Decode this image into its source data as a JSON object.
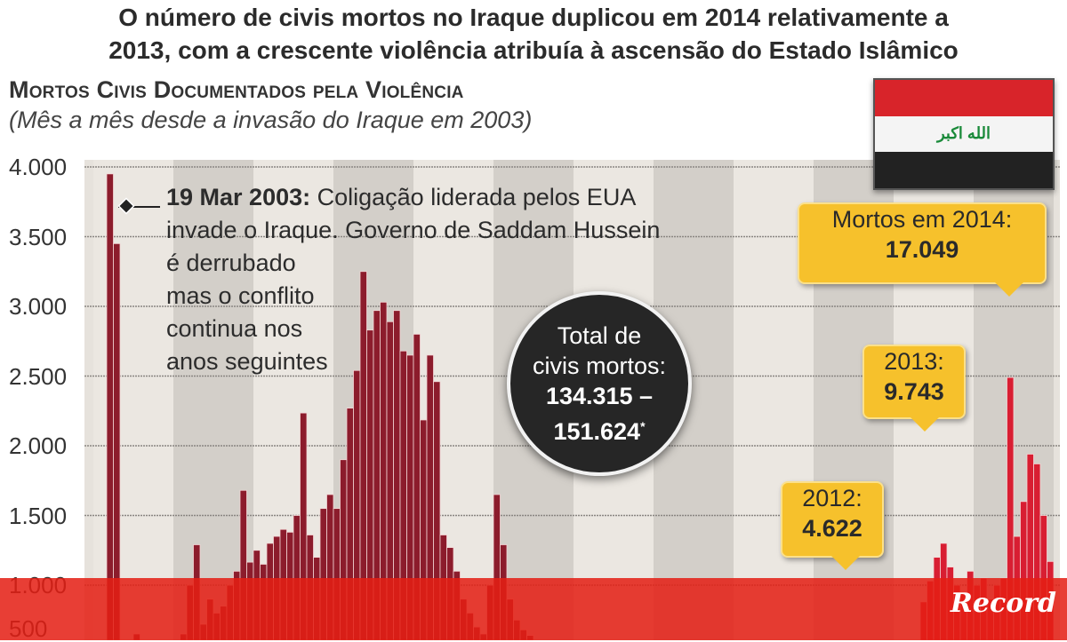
{
  "header": {
    "title_line1": "O número de civis mortos no Iraque duplicou em 2014 relativamente a",
    "title_line2": "2013, com a crescente violência atribuía à ascensão do Estado Islâmico",
    "subtitle": "Mortos Civis Documentados pela Violência",
    "note": "(Mês a mês desde a invasão do Iraque em 2003)"
  },
  "annotation": {
    "date": "19 Mar 2003:",
    "line1": " Coligação liderada pelos EUA",
    "line2": "invade o Iraque. Governo de Saddam Hussein",
    "line3": "é derrubado",
    "line4": "mas o conflito",
    "line5": "continua nos",
    "line6": "anos seguintes"
  },
  "total": {
    "line1": "Total de",
    "line2": "civis mortos:",
    "line3": "134.315 –",
    "line4": "151.624",
    "mark": "*"
  },
  "callouts": {
    "y2014": {
      "label": "Mortos em 2014:",
      "value": "17.049"
    },
    "y2013": {
      "label": "2013:",
      "value": "9.743"
    },
    "y2012": {
      "label": "2012:",
      "value": "4.622"
    }
  },
  "flag": {
    "text": "الله اكبر",
    "colors": [
      "#d8242a",
      "#f4f4f4",
      "#222222"
    ]
  },
  "brand": {
    "logo": "Record",
    "banner_color": "#e41e14"
  },
  "chart_data": {
    "type": "bar",
    "x_start": "2003-03",
    "x_interval": "month",
    "ylim": [
      0,
      4000
    ],
    "yticks": [
      "4.000",
      "3.500",
      "3.000",
      "2.500",
      "2.000",
      "1.500",
      "1.000",
      "500"
    ],
    "ytick_values": [
      4000,
      3500,
      3000,
      2500,
      2000,
      1500,
      1000,
      500
    ],
    "grid": true,
    "colors": {
      "default": "#8c1c2c",
      "recent": "#d81e32"
    },
    "highlight_from_index": 118,
    "values": [
      3950,
      3450,
      550,
      590,
      650,
      500,
      500,
      520,
      550,
      480,
      600,
      650,
      1000,
      1290,
      720,
      900,
      800,
      850,
      1000,
      1100,
      1680,
      1165,
      1250,
      1150,
      1300,
      1350,
      1400,
      1380,
      1500,
      2235,
      1360,
      1200,
      1550,
      1650,
      1550,
      1900,
      2270,
      2540,
      3250,
      2830,
      2970,
      3030,
      2890,
      2970,
      2680,
      2650,
      2800,
      2185,
      2650,
      2460,
      1360,
      1270,
      1100,
      900,
      800,
      700,
      650,
      1000,
      1650,
      1290,
      900,
      750,
      680,
      640,
      600,
      550,
      600,
      540,
      500,
      450,
      420,
      400,
      380,
      410,
      430,
      390,
      370,
      400,
      380,
      350,
      340,
      360,
      330,
      320,
      340,
      360,
      350,
      330,
      320,
      340,
      300,
      310,
      330,
      320,
      350,
      330,
      340,
      360,
      380,
      370,
      350,
      380,
      400,
      390,
      410,
      380,
      400,
      380,
      420,
      450,
      460,
      430,
      420,
      440,
      470,
      480,
      460,
      500,
      350,
      360,
      400,
      550,
      880,
      1030,
      1200,
      1300,
      1130,
      1000,
      950,
      1100,
      1000,
      1050,
      900,
      1000,
      1050,
      2490,
      1350,
      1600,
      1940,
      1870,
      1500,
      1170
    ]
  }
}
